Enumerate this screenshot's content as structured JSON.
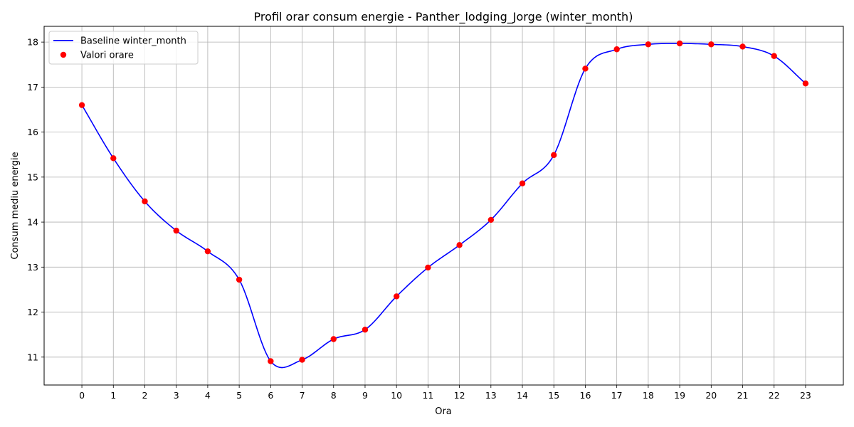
{
  "chart_data": {
    "type": "line",
    "title": "Profil orar consum energie - Panther_lodging_Jorge (winter_month)",
    "xlabel": "Ora",
    "ylabel": "Consum mediu energie",
    "x": [
      0,
      1,
      2,
      3,
      4,
      5,
      6,
      7,
      8,
      9,
      10,
      11,
      12,
      13,
      14,
      15,
      16,
      17,
      18,
      19,
      20,
      21,
      22,
      23
    ],
    "series": [
      {
        "name": "Baseline winter_month",
        "kind": "line",
        "color": "#0000ff",
        "values": [
          16.6,
          15.42,
          14.46,
          13.81,
          13.35,
          12.72,
          10.91,
          10.94,
          11.4,
          11.61,
          12.35,
          12.99,
          13.49,
          14.05,
          14.86,
          15.49,
          17.41,
          17.84,
          17.95,
          17.97,
          17.95,
          17.9,
          17.69,
          17.08
        ]
      },
      {
        "name": "Valori orare",
        "kind": "scatter",
        "color": "#ff0000",
        "values": [
          16.6,
          15.42,
          14.46,
          13.81,
          13.35,
          12.72,
          10.91,
          10.94,
          11.4,
          11.61,
          12.35,
          12.99,
          13.49,
          14.05,
          14.86,
          15.49,
          17.41,
          17.84,
          17.95,
          17.97,
          17.95,
          17.9,
          17.69,
          17.08
        ]
      }
    ],
    "xlim": [
      -1.2,
      24.2
    ],
    "ylim": [
      10.38,
      18.35
    ],
    "xticks": [
      "0",
      "1",
      "2",
      "3",
      "4",
      "5",
      "6",
      "7",
      "8",
      "9",
      "10",
      "11",
      "12",
      "13",
      "14",
      "15",
      "16",
      "17",
      "18",
      "19",
      "20",
      "21",
      "22",
      "23"
    ],
    "yticks": [
      11,
      12,
      13,
      14,
      15,
      16,
      17,
      18
    ],
    "grid": true,
    "legend_position": "top-left"
  }
}
